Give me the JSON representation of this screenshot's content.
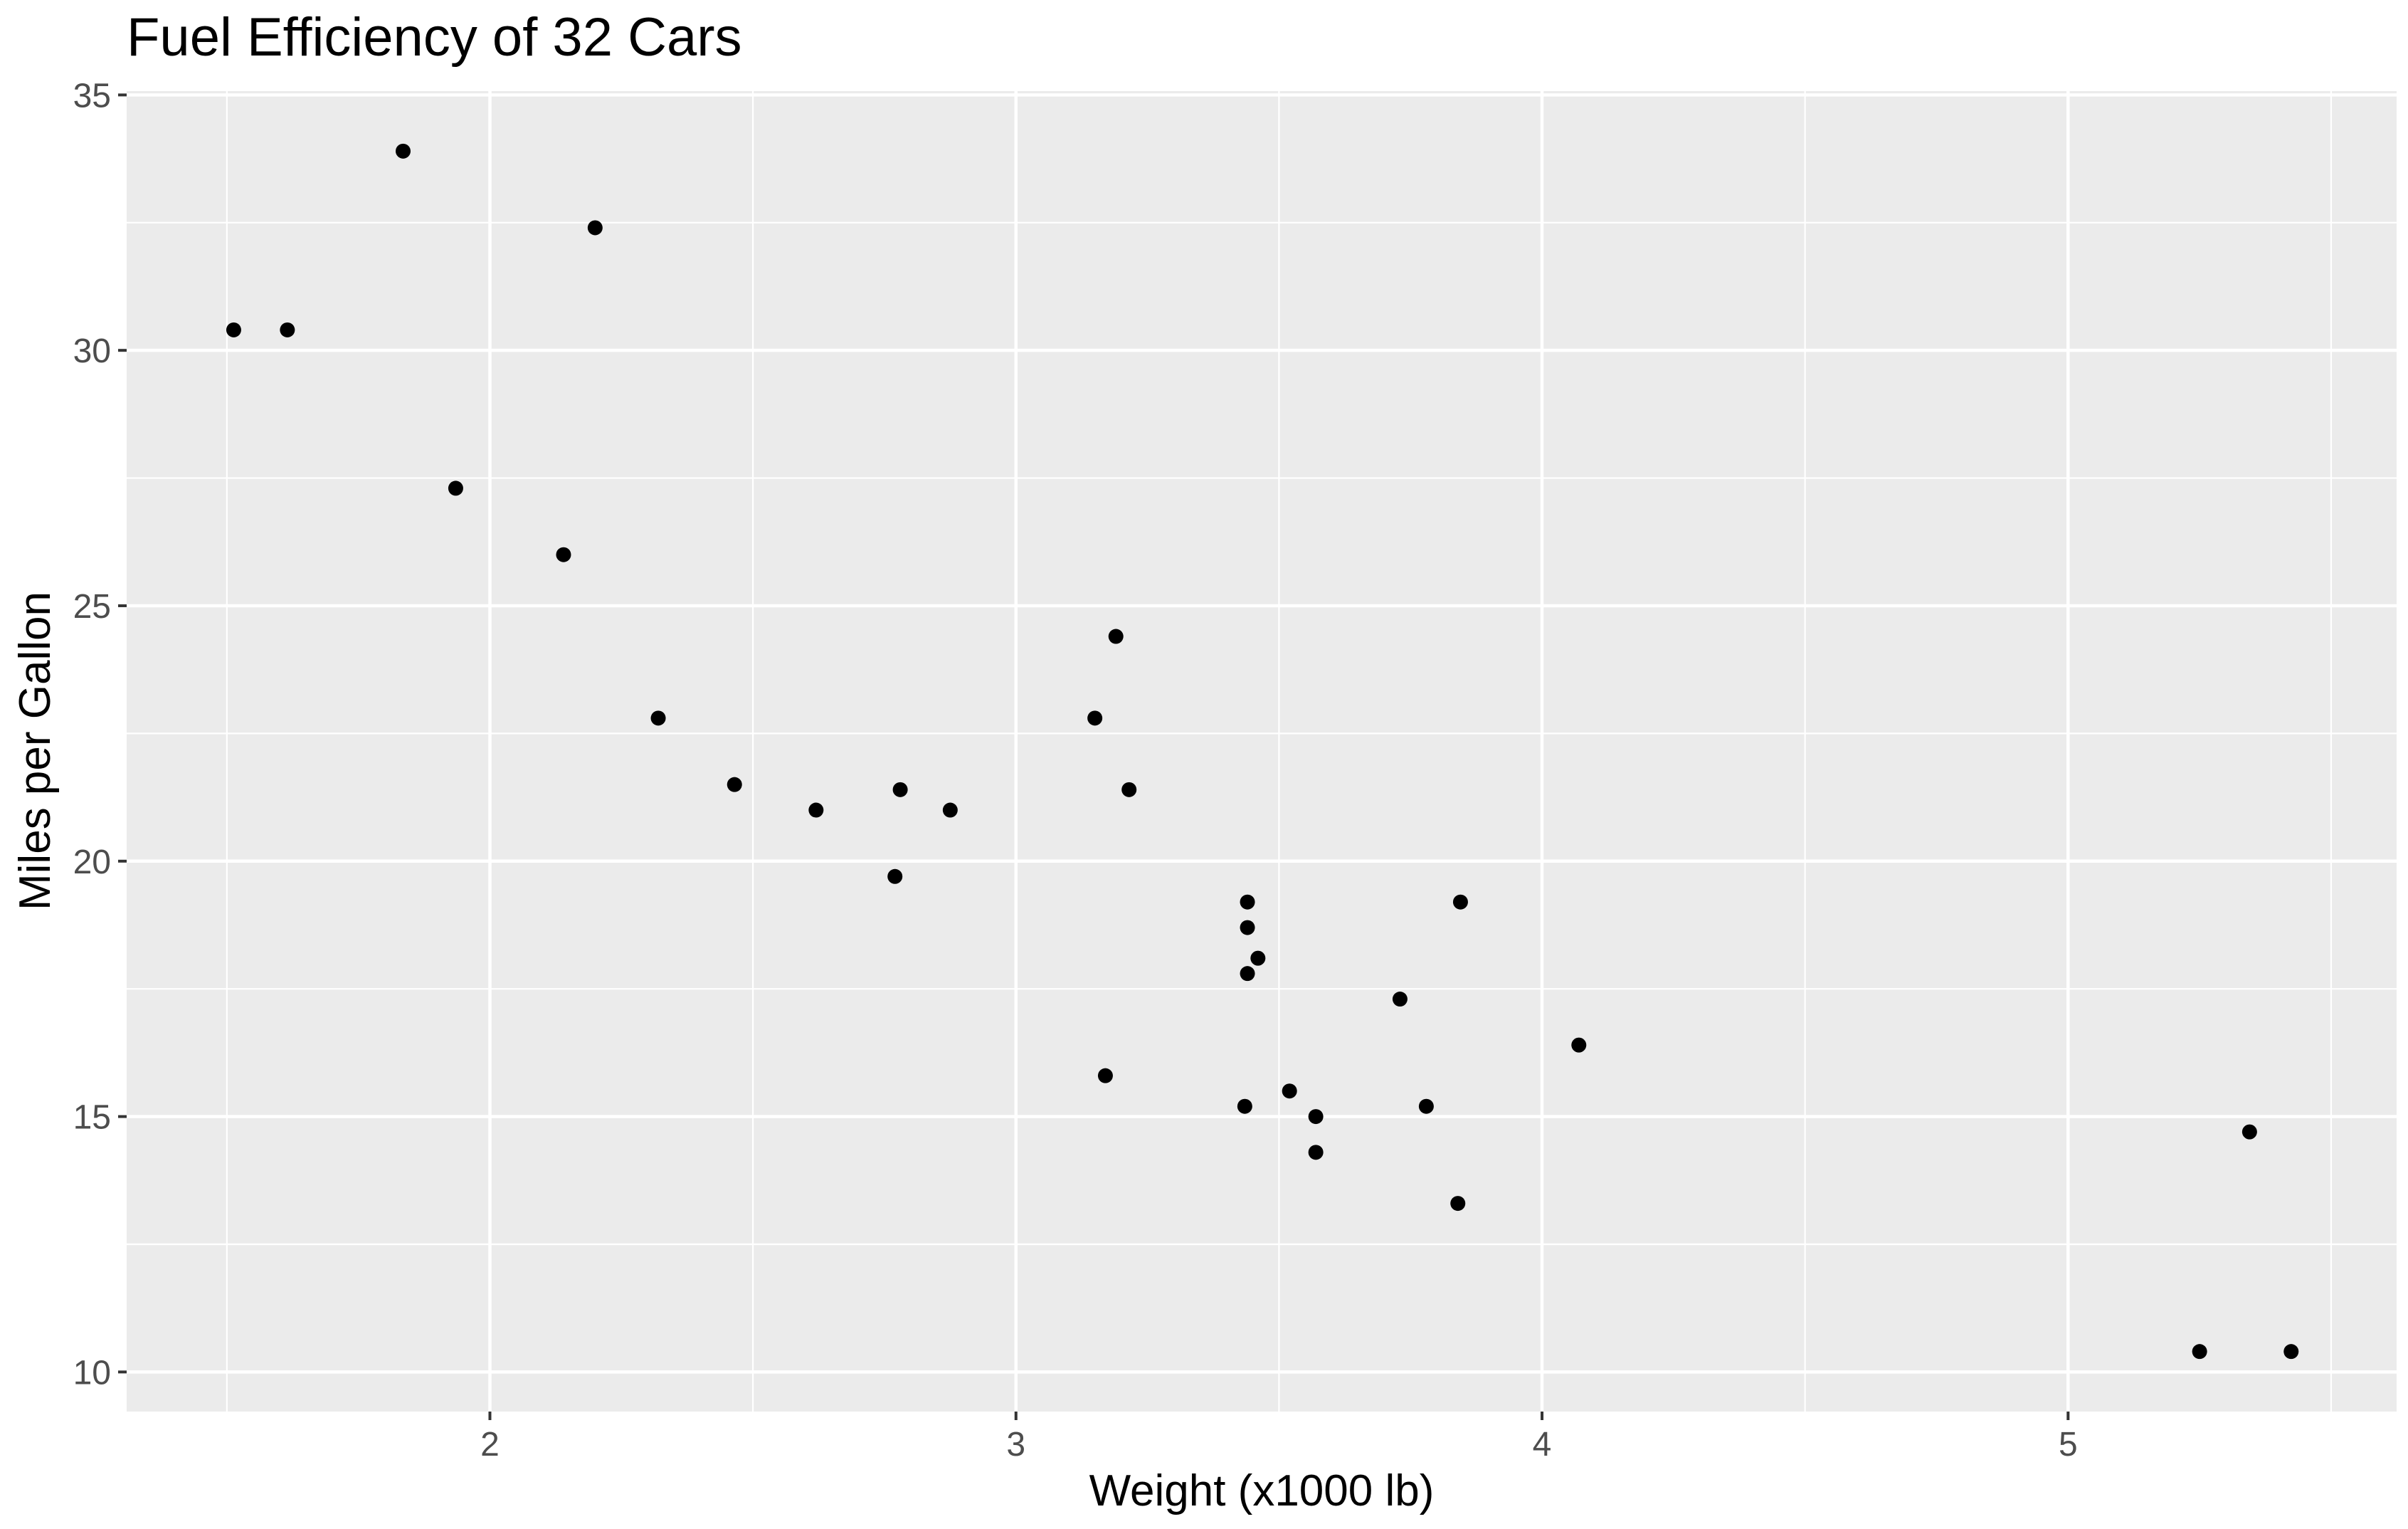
{
  "chart_data": {
    "type": "scatter",
    "title": "Fuel Efficiency of 32 Cars",
    "xlabel": "Weight (x1000 lb)",
    "ylabel": "Miles per Gallon",
    "xlim": [
      1.3095,
      5.6245
    ],
    "ylim": [
      9.225,
      35.075
    ],
    "x_ticks": [
      2,
      3,
      4,
      5
    ],
    "y_ticks": [
      10,
      15,
      20,
      25,
      30,
      35
    ],
    "x_minor_ticks": [
      1.5,
      2.5,
      3.5,
      4.5,
      5.5
    ],
    "y_minor_ticks": [
      12.5,
      17.5,
      22.5,
      27.5,
      32.5
    ],
    "grid": true,
    "legend": "none",
    "panel_color": "#ebebeb",
    "point_color": "#000000",
    "series": [
      {
        "x": [
          2.62,
          2.875,
          2.32,
          3.215,
          3.44,
          3.46,
          3.57,
          3.19,
          3.15,
          3.44,
          3.44,
          4.07,
          3.73,
          3.78,
          5.25,
          5.424,
          5.345,
          2.2,
          1.615,
          1.835,
          2.465,
          3.52,
          3.435,
          3.84,
          3.845,
          1.935,
          2.14,
          1.513,
          3.17,
          2.77,
          3.57,
          2.78
        ],
        "y": [
          21.0,
          21.0,
          22.8,
          21.4,
          18.7,
          18.1,
          14.3,
          24.4,
          22.8,
          19.2,
          17.8,
          16.4,
          17.3,
          15.2,
          10.4,
          10.4,
          14.7,
          32.4,
          30.4,
          33.9,
          21.5,
          15.5,
          15.2,
          13.3,
          19.2,
          27.3,
          26.0,
          30.4,
          15.8,
          19.7,
          15.0,
          21.4
        ]
      }
    ]
  }
}
